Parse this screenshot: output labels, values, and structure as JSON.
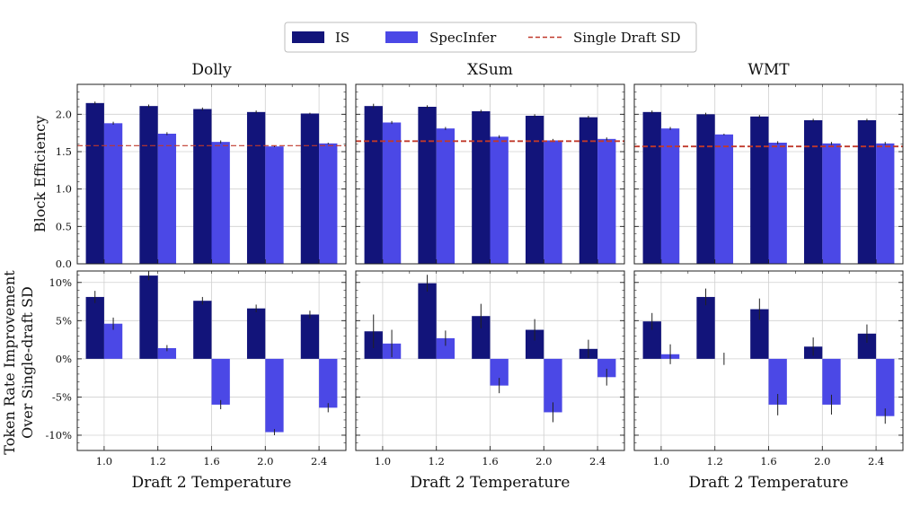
{
  "legend": {
    "items": [
      {
        "label": "IS",
        "kind": "bar",
        "color": "#12147a"
      },
      {
        "label": "SpecInfer",
        "kind": "bar",
        "color": "#4b48e6"
      },
      {
        "label": "Single Draft SD",
        "kind": "dashed-line",
        "color": "#c0392b"
      }
    ]
  },
  "shared": {
    "xlabel": "Draft 2 Temperature",
    "ylabel_top": "Block Efficiency",
    "ylabel_bottom_line1": "Token Rate Improvement",
    "ylabel_bottom_line2": "Over Single-draft SD"
  },
  "colors": {
    "is": "#12147a",
    "specinfer": "#4b48e6",
    "baseline": "#c0392b",
    "grid": "#d0d0d0",
    "errbar": "#222222"
  },
  "chart_data": [
    {
      "type": "bar",
      "dataset": "Dolly",
      "title": "Dolly",
      "row": "block_efficiency",
      "categories": [
        "1.0",
        "1.2",
        "1.6",
        "2.0",
        "2.4"
      ],
      "ylim": [
        0,
        2.4
      ],
      "yticks": [
        0.0,
        0.5,
        1.0,
        1.5,
        2.0
      ],
      "ytick_labels": [
        "0.0",
        "0.5",
        "1.0",
        "1.5",
        "2.0"
      ],
      "ylabel": "Block Efficiency",
      "xlabel": "",
      "series": [
        {
          "name": "IS",
          "values": [
            2.15,
            2.11,
            2.07,
            2.03,
            2.01
          ],
          "errors": [
            0.02,
            0.02,
            0.02,
            0.02,
            0.01
          ]
        },
        {
          "name": "SpecInfer",
          "values": [
            1.88,
            1.74,
            1.63,
            1.57,
            1.61
          ],
          "errors": [
            0.02,
            0.02,
            0.02,
            0.01,
            0.01
          ]
        }
      ],
      "baseline": {
        "name": "Single Draft SD",
        "value": 1.58
      }
    },
    {
      "type": "bar",
      "dataset": "XSum",
      "title": "XSum",
      "row": "block_efficiency",
      "categories": [
        "1.0",
        "1.2",
        "1.6",
        "2.0",
        "2.4"
      ],
      "ylim": [
        0,
        2.4
      ],
      "yticks": [
        0.0,
        0.5,
        1.0,
        1.5,
        2.0
      ],
      "ytick_labels": [
        "0.0",
        "0.5",
        "1.0",
        "1.5",
        "2.0"
      ],
      "ylabel": "",
      "xlabel": "",
      "series": [
        {
          "name": "IS",
          "values": [
            2.11,
            2.1,
            2.04,
            1.98,
            1.96
          ],
          "errors": [
            0.03,
            0.02,
            0.02,
            0.02,
            0.02
          ]
        },
        {
          "name": "SpecInfer",
          "values": [
            1.89,
            1.81,
            1.7,
            1.65,
            1.67
          ],
          "errors": [
            0.02,
            0.02,
            0.02,
            0.02,
            0.02
          ]
        }
      ],
      "baseline": {
        "name": "Single Draft SD",
        "value": 1.64
      }
    },
    {
      "type": "bar",
      "dataset": "WMT",
      "title": "WMT",
      "row": "block_efficiency",
      "categories": [
        "1.0",
        "1.2",
        "1.6",
        "2.0",
        "2.4"
      ],
      "ylim": [
        0,
        2.4
      ],
      "yticks": [
        0.0,
        0.5,
        1.0,
        1.5,
        2.0
      ],
      "ytick_labels": [
        "0.0",
        "0.5",
        "1.0",
        "1.5",
        "2.0"
      ],
      "ylabel": "",
      "xlabel": "",
      "series": [
        {
          "name": "IS",
          "values": [
            2.03,
            2.0,
            1.97,
            1.92,
            1.92
          ],
          "errors": [
            0.02,
            0.02,
            0.02,
            0.02,
            0.02
          ]
        },
        {
          "name": "SpecInfer",
          "values": [
            1.81,
            1.73,
            1.62,
            1.61,
            1.61
          ],
          "errors": [
            0.02,
            0.01,
            0.02,
            0.02,
            0.02
          ]
        }
      ],
      "baseline": {
        "name": "Single Draft SD",
        "value": 1.57
      }
    },
    {
      "type": "bar",
      "dataset": "Dolly",
      "title": "",
      "row": "token_rate_improvement",
      "categories": [
        "1.0",
        "1.2",
        "1.6",
        "2.0",
        "2.4"
      ],
      "ylim": [
        -12,
        11.5
      ],
      "yticks": [
        10,
        5,
        0,
        -5,
        -10
      ],
      "ytick_labels": [
        "10%",
        "5%",
        "0%",
        "-5%",
        "-10%"
      ],
      "ylabel": "Token Rate Improvement Over Single-draft SD",
      "xlabel": "Draft 2 Temperature",
      "series": [
        {
          "name": "IS",
          "values": [
            8.1,
            10.9,
            7.6,
            6.6,
            5.8
          ],
          "errors": [
            0.8,
            0.6,
            0.5,
            0.5,
            0.5
          ]
        },
        {
          "name": "SpecInfer",
          "values": [
            4.6,
            1.4,
            -6.0,
            -9.6,
            -6.4
          ],
          "errors": [
            0.8,
            0.4,
            0.6,
            0.4,
            0.6
          ]
        }
      ]
    },
    {
      "type": "bar",
      "dataset": "XSum",
      "title": "",
      "row": "token_rate_improvement",
      "categories": [
        "1.0",
        "1.2",
        "1.6",
        "2.0",
        "2.4"
      ],
      "ylim": [
        -12,
        11.5
      ],
      "yticks": [
        10,
        5,
        0,
        -5,
        -10
      ],
      "ytick_labels": [
        "10%",
        "5%",
        "0%",
        "-5%",
        "-10%"
      ],
      "ylabel": "",
      "xlabel": "Draft 2 Temperature",
      "series": [
        {
          "name": "IS",
          "values": [
            3.6,
            9.9,
            5.6,
            3.8,
            1.3
          ],
          "errors": [
            2.2,
            1.1,
            1.6,
            1.4,
            1.2
          ]
        },
        {
          "name": "SpecInfer",
          "values": [
            2.0,
            2.7,
            -3.5,
            -7.0,
            -2.4
          ],
          "errors": [
            1.8,
            1.0,
            1.0,
            1.3,
            1.1
          ]
        }
      ]
    },
    {
      "type": "bar",
      "dataset": "WMT",
      "title": "",
      "row": "token_rate_improvement",
      "categories": [
        "1.0",
        "1.2",
        "1.6",
        "2.0",
        "2.4"
      ],
      "ylim": [
        -12,
        11.5
      ],
      "yticks": [
        10,
        5,
        0,
        -5,
        -10
      ],
      "ytick_labels": [
        "10%",
        "5%",
        "0%",
        "-5%",
        "-10%"
      ],
      "ylabel": "",
      "xlabel": "Draft 2 Temperature",
      "series": [
        {
          "name": "IS",
          "values": [
            4.9,
            8.1,
            6.5,
            1.6,
            3.3
          ],
          "errors": [
            1.1,
            1.1,
            1.4,
            1.2,
            1.2
          ]
        },
        {
          "name": "SpecInfer",
          "values": [
            0.6,
            0.0,
            -6.0,
            -6.0,
            -7.5
          ],
          "errors": [
            1.3,
            0.8,
            1.4,
            1.3,
            1.0
          ]
        }
      ]
    }
  ]
}
